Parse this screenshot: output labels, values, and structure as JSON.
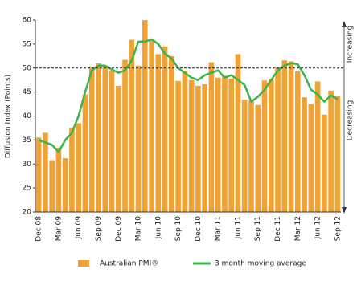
{
  "chart_data": {
    "type": "bar",
    "y_label": "Diffusion Index (Points)",
    "annotations": {
      "up": "Increasing",
      "down": "Decreasing"
    },
    "reference": 50,
    "categories": [
      "Dec 08",
      null,
      null,
      "Mar 09",
      null,
      null,
      "Jun 09",
      null,
      null,
      "Sep 09",
      null,
      null,
      "Dec 09",
      null,
      null,
      "Mar 10",
      null,
      null,
      "Jun 10",
      null,
      null,
      "Sep 10",
      null,
      null,
      "Dec 10",
      null,
      null,
      "Mar 11",
      null,
      null,
      "Jun 11",
      null,
      null,
      "Sep 11",
      null,
      null,
      "Dec 11",
      null,
      null,
      "Mar 12",
      null,
      null,
      "Jun 12",
      null,
      null,
      "Sep 12"
    ],
    "series": [
      {
        "name": "Australian PMI®",
        "color": "#f0a232",
        "type": "bar",
        "values": [
          35.5,
          36.5,
          30.8,
          33.4,
          31.2,
          37.5,
          38.5,
          44.5,
          50.2,
          51,
          50.5,
          49.5,
          46.3,
          51.7,
          55.9,
          50.5,
          60,
          56,
          52.9,
          54.5,
          52.5,
          47.3,
          49.4,
          47.5,
          46.3,
          46.6,
          51.2,
          48,
          48.4,
          47.8,
          52.9,
          43.4,
          43.3,
          42.3,
          47.4,
          47.7,
          50.2,
          51.6,
          51.4,
          49.3,
          43.9,
          42.5,
          47.2,
          40.3,
          45.3,
          44.1
        ]
      },
      {
        "name": "3 month moving average",
        "color": "#3cb44b",
        "type": "line",
        "values": [
          35,
          34.5,
          34,
          32.5,
          35,
          36.5,
          40,
          45,
          49.5,
          50.5,
          50.5,
          49.7,
          49,
          49.5,
          51.5,
          55.5,
          55.5,
          56,
          55,
          53,
          52,
          50,
          49,
          48,
          47.5,
          48.5,
          49,
          49.5,
          48,
          48.5,
          47.5,
          46.5,
          43,
          44,
          45.5,
          47.5,
          49.5,
          50.5,
          51,
          50.8,
          48.5,
          45.5,
          44.5,
          43,
          44.3,
          43.5
        ]
      }
    ],
    "ylim": [
      20,
      60
    ],
    "yticks": [
      20,
      25,
      30,
      35,
      40,
      45,
      50,
      55,
      60
    ]
  }
}
